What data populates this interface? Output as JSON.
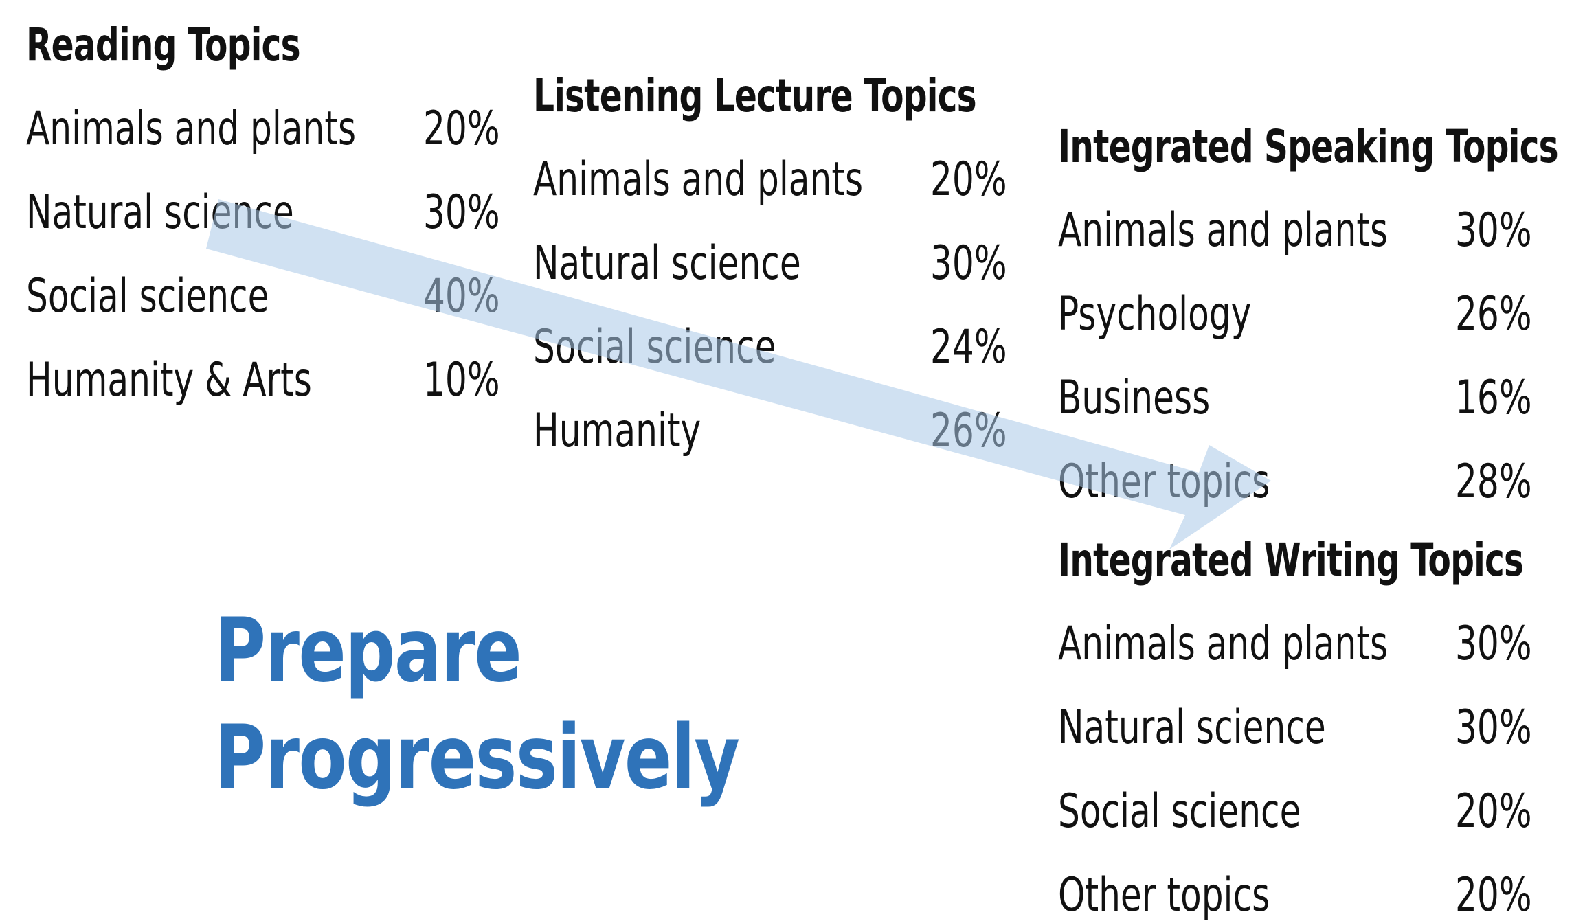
{
  "reading": {
    "title": "Reading Topics",
    "items": [
      {
        "label": "Animals and plants",
        "pct": "20%"
      },
      {
        "label": "Natural science",
        "pct": "30%"
      },
      {
        "label": "Social science",
        "pct": "40%"
      },
      {
        "label": "Humanity & Arts",
        "pct": "10%"
      }
    ]
  },
  "listening": {
    "title": "Listening Lecture Topics",
    "items": [
      {
        "label": "Animals and plants",
        "pct": "20%"
      },
      {
        "label": "Natural science",
        "pct": "30%"
      },
      {
        "label": "Social science",
        "pct": "24%"
      },
      {
        "label": "Humanity",
        "pct": "26%"
      }
    ]
  },
  "speaking": {
    "title": "Integrated Speaking Topics",
    "items": [
      {
        "label": "Animals and plants",
        "pct": "30%"
      },
      {
        "label": "Psychology",
        "pct": "26%"
      },
      {
        "label": "Business",
        "pct": "16%"
      },
      {
        "label": "Other topics",
        "pct": "28%"
      }
    ]
  },
  "writing": {
    "title": "Integrated Writing Topics",
    "items": [
      {
        "label": "Animals and plants",
        "pct": "30%"
      },
      {
        "label": "Natural science",
        "pct": "30%"
      },
      {
        "label": "Social science",
        "pct": "20%"
      },
      {
        "label": "Other topics",
        "pct": "20%"
      }
    ]
  },
  "slogan": {
    "line1": "Prepare",
    "line2": "Progressively"
  },
  "colors": {
    "slogan": "#2f73b9",
    "arrow": "#a9c9e8"
  }
}
